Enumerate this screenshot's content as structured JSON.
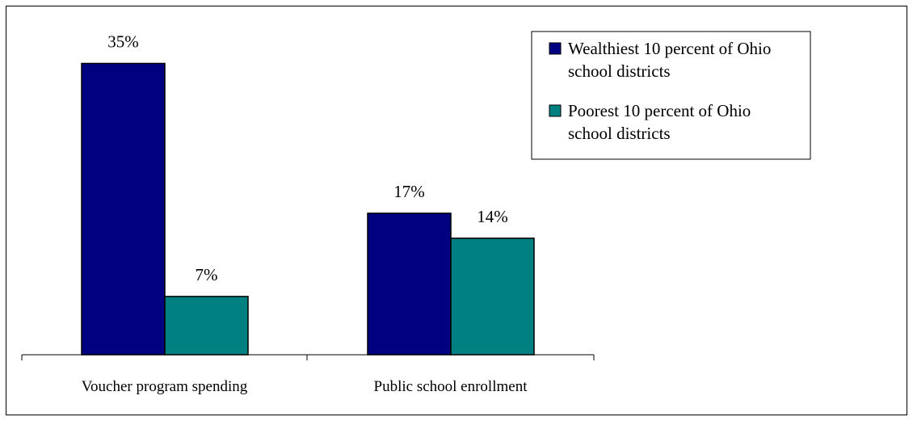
{
  "chart_data": {
    "type": "bar",
    "title": "",
    "xlabel": "",
    "ylabel": "",
    "categories": [
      "Voucher program spending",
      "Public school enrollment"
    ],
    "series": [
      {
        "name": "Wealthiest 10 percent of Ohio school districts",
        "color": "#000080",
        "values": [
          35,
          17
        ],
        "labels": [
          "35%",
          "17%"
        ]
      },
      {
        "name": "Poorest 10 percent of Ohio school districts",
        "color": "#008080",
        "values": [
          7,
          14
        ],
        "labels": [
          "7%",
          "14%"
        ]
      }
    ],
    "unit": "%",
    "ylim": [
      0,
      40
    ],
    "grid": false,
    "y_axis_visible": false,
    "legend": {
      "position": "top-right",
      "lines": [
        [
          "Wealthiest 10 percent of Ohio",
          "school districts"
        ],
        [
          "Poorest 10 percent of Ohio",
          "school districts"
        ]
      ]
    }
  }
}
